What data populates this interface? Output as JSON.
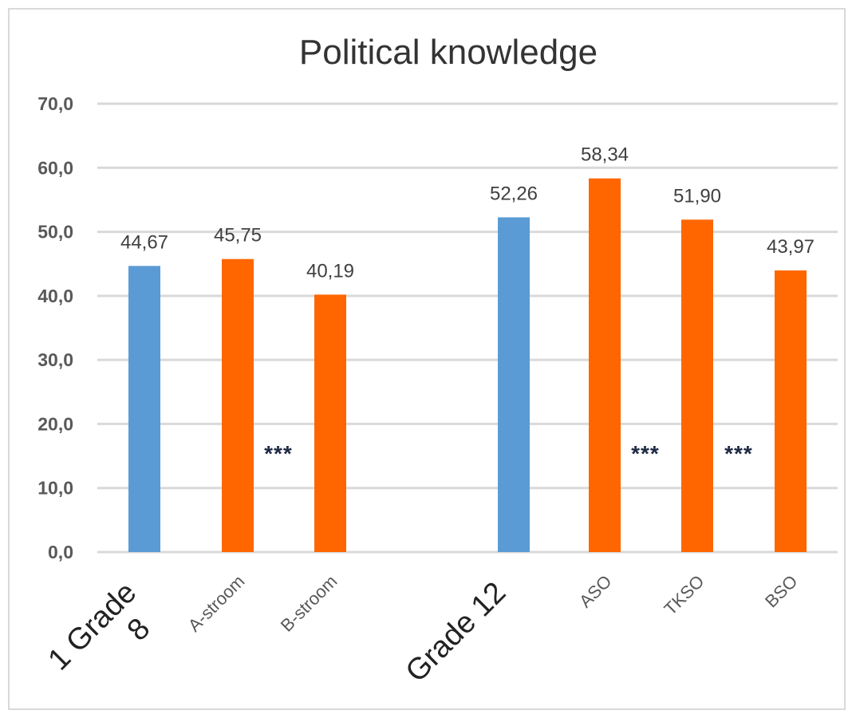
{
  "chart_data": {
    "type": "bar",
    "title": "Political knowledge",
    "ylim": [
      0,
      70
    ],
    "yticks": [
      "0,0",
      "10,0",
      "20,0",
      "30,0",
      "40,0",
      "50,0",
      "60,0",
      "70,0"
    ],
    "grid": true,
    "categories": [
      {
        "label": "1 Grade 8",
        "value": 44.67,
        "value_label": "44,67",
        "kind": "total",
        "significance": ""
      },
      {
        "label": "A-stroom",
        "value": 45.75,
        "value_label": "45,75",
        "kind": "sub",
        "significance": ""
      },
      {
        "label": "B-stroom",
        "value": 40.19,
        "value_label": "40,19",
        "kind": "sub",
        "significance": "***"
      },
      {
        "label": "Grade 12",
        "value": 52.26,
        "value_label": "52,26",
        "kind": "total",
        "significance": ""
      },
      {
        "label": "ASO",
        "value": 58.34,
        "value_label": "58,34",
        "kind": "sub",
        "significance": ""
      },
      {
        "label": "TKSO",
        "value": 51.9,
        "value_label": "51,90",
        "kind": "sub",
        "significance": "***"
      },
      {
        "label": "BSO",
        "value": 43.97,
        "value_label": "43,97",
        "kind": "sub",
        "significance": "***"
      }
    ],
    "colors": {
      "total": "#5b9bd5",
      "sub": "#ff6600"
    }
  }
}
